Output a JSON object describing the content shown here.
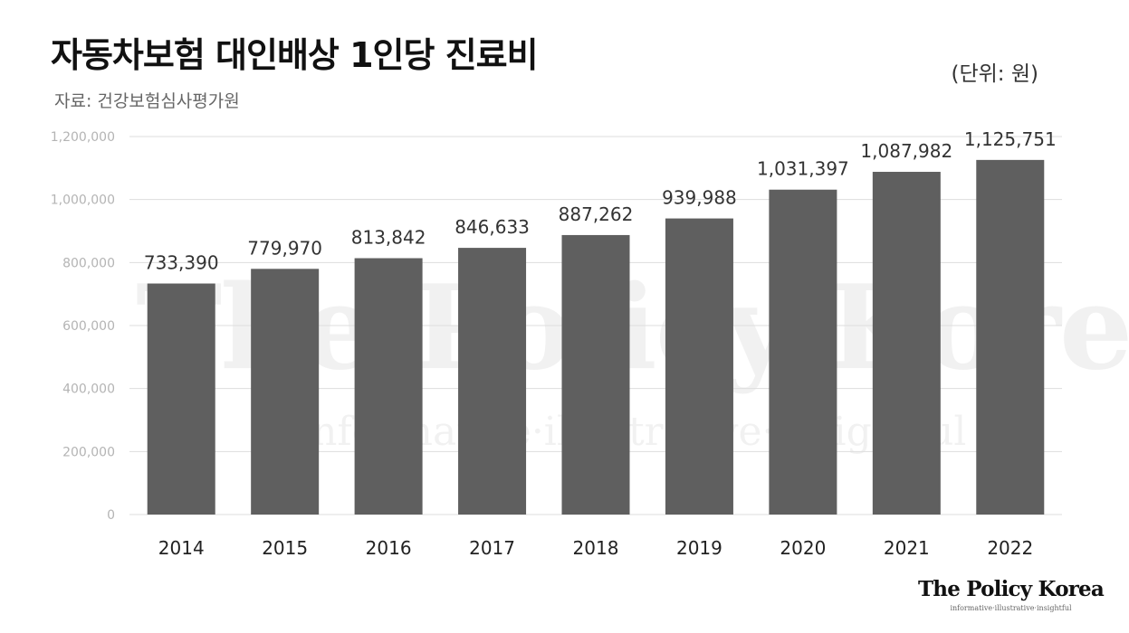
{
  "header": {
    "title": "자동차보험 대인배상 1인당 진료비",
    "source": "자료: 건강보험심사평가원",
    "unit": "(단위: 원)"
  },
  "watermark": {
    "main": "The Policy Korea",
    "sub": "informative·illustrative·insightful"
  },
  "logo": {
    "name": "The Policy Korea",
    "tagline": "informative·illustrative·insightful"
  },
  "colors": {
    "bar": "#5f5f5f",
    "grid": "#dddddd",
    "tick_label": "#b4b4b4",
    "category_label": "#222222",
    "value_label": "#333333"
  },
  "chart_data": {
    "type": "bar",
    "title": "자동차보험 대인배상 1인당 진료비",
    "xlabel": "",
    "ylabel": "",
    "unit": "원",
    "categories": [
      "2014",
      "2015",
      "2016",
      "2017",
      "2018",
      "2019",
      "2020",
      "2021",
      "2022"
    ],
    "values": [
      733390,
      779970,
      813842,
      846633,
      887262,
      939988,
      1031397,
      1087982,
      1125751
    ],
    "value_labels": [
      "733,390",
      "779,970",
      "813,842",
      "846,633",
      "887,262",
      "939,988",
      "1,031,397",
      "1,087,982",
      "1,125,751"
    ],
    "ylim": [
      0,
      1200000
    ],
    "yticks": [
      0,
      200000,
      400000,
      600000,
      800000,
      1000000,
      1200000
    ],
    "ytick_labels": [
      "0",
      "200,000",
      "400,000",
      "600,000",
      "800,000",
      "1,000,000",
      "1,200,000"
    ],
    "grid": true,
    "legend": "none"
  }
}
